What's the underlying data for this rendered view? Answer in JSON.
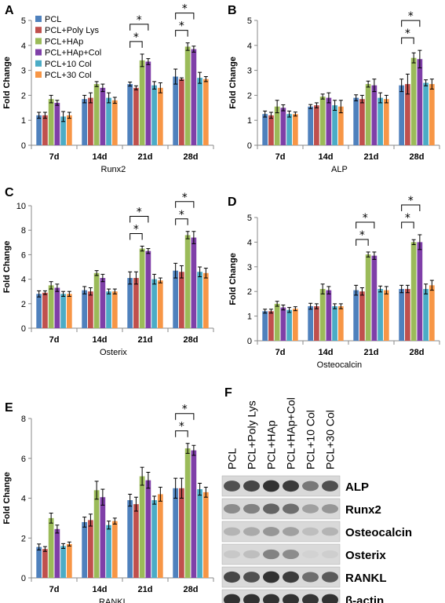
{
  "series_colors": [
    "#4f81bd",
    "#c0504d",
    "#9bbb59",
    "#7f3fa8",
    "#4bacc6",
    "#f79646"
  ],
  "legend": [
    "PCL",
    "PCL+Poly Lys",
    "PCL+HAp",
    "PCL+HAp+Col",
    "PCL+10 Col",
    "PCL+30 Col"
  ],
  "chart_data": [
    {
      "panel": "A",
      "type": "bar",
      "xlabel": "Runx2",
      "ylabel": "Fold Change",
      "ylim": [
        0,
        5
      ],
      "yticks": [
        0,
        1,
        2,
        3,
        4,
        5
      ],
      "grid": false,
      "legend_position": "top-left",
      "categories": [
        "7d",
        "14d",
        "21d",
        "28d"
      ],
      "series": [
        {
          "name": "PCL",
          "values": [
            1.2,
            1.85,
            2.45,
            2.75
          ],
          "errors": [
            0.12,
            0.15,
            0.08,
            0.3
          ]
        },
        {
          "name": "PCL+Poly Lys",
          "values": [
            1.2,
            1.9,
            2.3,
            2.65
          ],
          "errors": [
            0.12,
            0.2,
            0.08,
            0.05
          ]
        },
        {
          "name": "PCL+HAp",
          "values": [
            1.85,
            2.45,
            3.4,
            3.95
          ],
          "errors": [
            0.15,
            0.1,
            0.25,
            0.15
          ]
        },
        {
          "name": "PCL+HAp+Col",
          "values": [
            1.7,
            2.3,
            3.35,
            3.85
          ],
          "errors": [
            0.1,
            0.15,
            0.12,
            0.12
          ]
        },
        {
          "name": "PCL+10 Col",
          "values": [
            1.15,
            1.9,
            2.4,
            2.7
          ],
          "errors": [
            0.2,
            0.2,
            0.15,
            0.22
          ]
        },
        {
          "name": "PCL+30 Col",
          "values": [
            1.2,
            1.8,
            2.3,
            2.65
          ],
          "errors": [
            0.12,
            0.12,
            0.2,
            0.1
          ]
        }
      ],
      "significance": [
        {
          "category": "21d",
          "compare": [
            0,
            2
          ],
          "label": "*"
        },
        {
          "category": "21d",
          "compare": [
            0,
            3
          ],
          "label": "*"
        },
        {
          "category": "28d",
          "compare": [
            0,
            2
          ],
          "label": "*"
        },
        {
          "category": "28d",
          "compare": [
            0,
            3
          ],
          "label": "*"
        }
      ]
    },
    {
      "panel": "B",
      "type": "bar",
      "xlabel": "ALP",
      "ylabel": "Fold Change",
      "ylim": [
        0,
        5
      ],
      "yticks": [
        0,
        1,
        2,
        3,
        4,
        5
      ],
      "grid": false,
      "categories": [
        "7d",
        "14d",
        "21d",
        "28d"
      ],
      "series": [
        {
          "name": "PCL",
          "values": [
            1.25,
            1.55,
            1.9,
            2.4
          ],
          "errors": [
            0.12,
            0.08,
            0.12,
            0.25
          ]
        },
        {
          "name": "PCL+Poly Lys",
          "values": [
            1.2,
            1.6,
            1.85,
            2.45
          ],
          "errors": [
            0.12,
            0.1,
            0.15,
            0.4
          ]
        },
        {
          "name": "PCL+HAp",
          "values": [
            1.55,
            1.95,
            2.45,
            3.5
          ],
          "errors": [
            0.25,
            0.1,
            0.12,
            0.2
          ]
        },
        {
          "name": "PCL+HAp+Col",
          "values": [
            1.5,
            1.9,
            2.4,
            3.45
          ],
          "errors": [
            0.12,
            0.2,
            0.25,
            0.35
          ]
        },
        {
          "name": "PCL+10 Col",
          "values": [
            1.25,
            1.6,
            1.9,
            2.5
          ],
          "errors": [
            0.12,
            0.2,
            0.2,
            0.12
          ]
        },
        {
          "name": "PCL+30 Col",
          "values": [
            1.25,
            1.55,
            1.85,
            2.45
          ],
          "errors": [
            0.08,
            0.25,
            0.15,
            0.2
          ]
        }
      ],
      "significance": [
        {
          "category": "28d",
          "compare": [
            0,
            2
          ],
          "label": "*"
        },
        {
          "category": "28d",
          "compare": [
            0,
            3
          ],
          "label": "*"
        }
      ]
    },
    {
      "panel": "C",
      "type": "bar",
      "xlabel": "Osterix",
      "ylabel": "Fold Change",
      "ylim": [
        0,
        10
      ],
      "yticks": [
        0,
        2,
        4,
        6,
        8,
        10
      ],
      "grid": false,
      "categories": [
        "7d",
        "14d",
        "21d",
        "28d"
      ],
      "series": [
        {
          "name": "PCL",
          "values": [
            2.8,
            3.1,
            4.1,
            4.7
          ],
          "errors": [
            0.25,
            0.3,
            0.5,
            0.6
          ]
        },
        {
          "name": "PCL+Poly Lys",
          "values": [
            2.9,
            3.0,
            4.1,
            4.6
          ],
          "errors": [
            0.15,
            0.3,
            0.5,
            0.5
          ]
        },
        {
          "name": "PCL+HAp",
          "values": [
            3.5,
            4.5,
            6.5,
            7.6
          ],
          "errors": [
            0.3,
            0.2,
            0.2,
            0.3
          ]
        },
        {
          "name": "PCL+HAp+Col",
          "values": [
            3.3,
            4.1,
            6.3,
            7.4
          ],
          "errors": [
            0.3,
            0.3,
            0.2,
            0.5
          ]
        },
        {
          "name": "PCL+10 Col",
          "values": [
            2.8,
            3.0,
            4.0,
            4.6
          ],
          "errors": [
            0.2,
            0.2,
            0.4,
            0.4
          ]
        },
        {
          "name": "PCL+30 Col",
          "values": [
            2.8,
            3.0,
            3.9,
            4.5
          ],
          "errors": [
            0.2,
            0.2,
            0.2,
            0.4
          ]
        }
      ],
      "significance": [
        {
          "category": "21d",
          "compare": [
            0,
            2
          ],
          "label": "*"
        },
        {
          "category": "21d",
          "compare": [
            0,
            3
          ],
          "label": "*"
        },
        {
          "category": "28d",
          "compare": [
            0,
            2
          ],
          "label": "*"
        },
        {
          "category": "28d",
          "compare": [
            0,
            3
          ],
          "label": "*"
        }
      ]
    },
    {
      "panel": "D",
      "type": "bar",
      "xlabel": "Osteocalcin",
      "ylabel": "Fold Change",
      "ylim": [
        0,
        5
      ],
      "yticks": [
        0,
        1,
        2,
        3,
        4,
        5
      ],
      "grid": false,
      "categories": [
        "7d",
        "14d",
        "21d",
        "28d"
      ],
      "series": [
        {
          "name": "PCL",
          "values": [
            1.2,
            1.4,
            2.05,
            2.1
          ],
          "errors": [
            0.08,
            0.12,
            0.2,
            0.15
          ]
        },
        {
          "name": "PCL+Poly Lys",
          "values": [
            1.2,
            1.4,
            2.0,
            2.1
          ],
          "errors": [
            0.08,
            0.1,
            0.15,
            0.15
          ]
        },
        {
          "name": "PCL+HAp",
          "values": [
            1.5,
            2.1,
            3.5,
            4.0
          ],
          "errors": [
            0.1,
            0.2,
            0.1,
            0.1
          ]
        },
        {
          "name": "PCL+HAp+Col",
          "values": [
            1.35,
            2.05,
            3.45,
            4.0
          ],
          "errors": [
            0.1,
            0.15,
            0.15,
            0.3
          ]
        },
        {
          "name": "PCL+10 Col",
          "values": [
            1.25,
            1.4,
            2.1,
            2.1
          ],
          "errors": [
            0.1,
            0.1,
            0.12,
            0.2
          ]
        },
        {
          "name": "PCL+30 Col",
          "values": [
            1.3,
            1.4,
            2.05,
            2.25
          ],
          "errors": [
            0.08,
            0.1,
            0.15,
            0.2
          ]
        }
      ],
      "significance": [
        {
          "category": "21d",
          "compare": [
            0,
            2
          ],
          "label": "*"
        },
        {
          "category": "21d",
          "compare": [
            0,
            3
          ],
          "label": "*"
        },
        {
          "category": "28d",
          "compare": [
            0,
            2
          ],
          "label": "*"
        },
        {
          "category": "28d",
          "compare": [
            0,
            3
          ],
          "label": "*"
        }
      ]
    },
    {
      "panel": "E",
      "type": "bar",
      "xlabel": "RANKL",
      "ylabel": "Fold Change",
      "ylim": [
        0,
        8
      ],
      "yticks": [
        0,
        2,
        4,
        6,
        8
      ],
      "grid": false,
      "categories": [
        "7d",
        "14d",
        "21d",
        "28d"
      ],
      "series": [
        {
          "name": "PCL",
          "values": [
            1.55,
            2.8,
            3.9,
            4.5
          ],
          "errors": [
            0.15,
            0.25,
            0.3,
            0.5
          ]
        },
        {
          "name": "PCL+Poly Lys",
          "values": [
            1.45,
            2.9,
            3.7,
            4.5
          ],
          "errors": [
            0.12,
            0.3,
            0.35,
            0.5
          ]
        },
        {
          "name": "PCL+HAp",
          "values": [
            3.0,
            4.4,
            5.1,
            6.5
          ],
          "errors": [
            0.25,
            0.45,
            0.45,
            0.25
          ]
        },
        {
          "name": "PCL+HAp+Col",
          "values": [
            2.45,
            4.05,
            4.9,
            6.4
          ],
          "errors": [
            0.2,
            0.4,
            0.4,
            0.25
          ]
        },
        {
          "name": "PCL+10 Col",
          "values": [
            1.6,
            2.65,
            3.9,
            4.45
          ],
          "errors": [
            0.12,
            0.2,
            0.2,
            0.3
          ]
        },
        {
          "name": "PCL+30 Col",
          "values": [
            1.7,
            2.85,
            4.2,
            4.3
          ],
          "errors": [
            0.1,
            0.15,
            0.35,
            0.25
          ]
        }
      ],
      "significance": [
        {
          "category": "28d",
          "compare": [
            0,
            2
          ],
          "label": "*"
        },
        {
          "category": "28d",
          "compare": [
            0,
            3
          ],
          "label": "*"
        }
      ]
    }
  ],
  "blot": {
    "panel": "F",
    "columns": [
      "PCL",
      "PCL+Poly Lys",
      "PCL+HAp",
      "PCL+HAp+Col",
      "PCL+10 Col",
      "PCL+30 Col"
    ],
    "rows": [
      {
        "name": "ALP",
        "intensity": [
          0.75,
          0.8,
          0.9,
          0.85,
          0.55,
          0.75
        ]
      },
      {
        "name": "Runx2",
        "intensity": [
          0.45,
          0.5,
          0.65,
          0.6,
          0.35,
          0.4
        ]
      },
      {
        "name": "Osteocalcin",
        "intensity": [
          0.25,
          0.3,
          0.4,
          0.35,
          0.2,
          0.25
        ]
      },
      {
        "name": "Osterix",
        "intensity": [
          0.15,
          0.2,
          0.5,
          0.45,
          0.1,
          0.12
        ]
      },
      {
        "name": "RANKL",
        "intensity": [
          0.8,
          0.75,
          0.9,
          0.85,
          0.6,
          0.7
        ]
      },
      {
        "name": "β-actin",
        "intensity": [
          0.9,
          0.9,
          0.9,
          0.9,
          0.88,
          0.9
        ]
      }
    ]
  }
}
